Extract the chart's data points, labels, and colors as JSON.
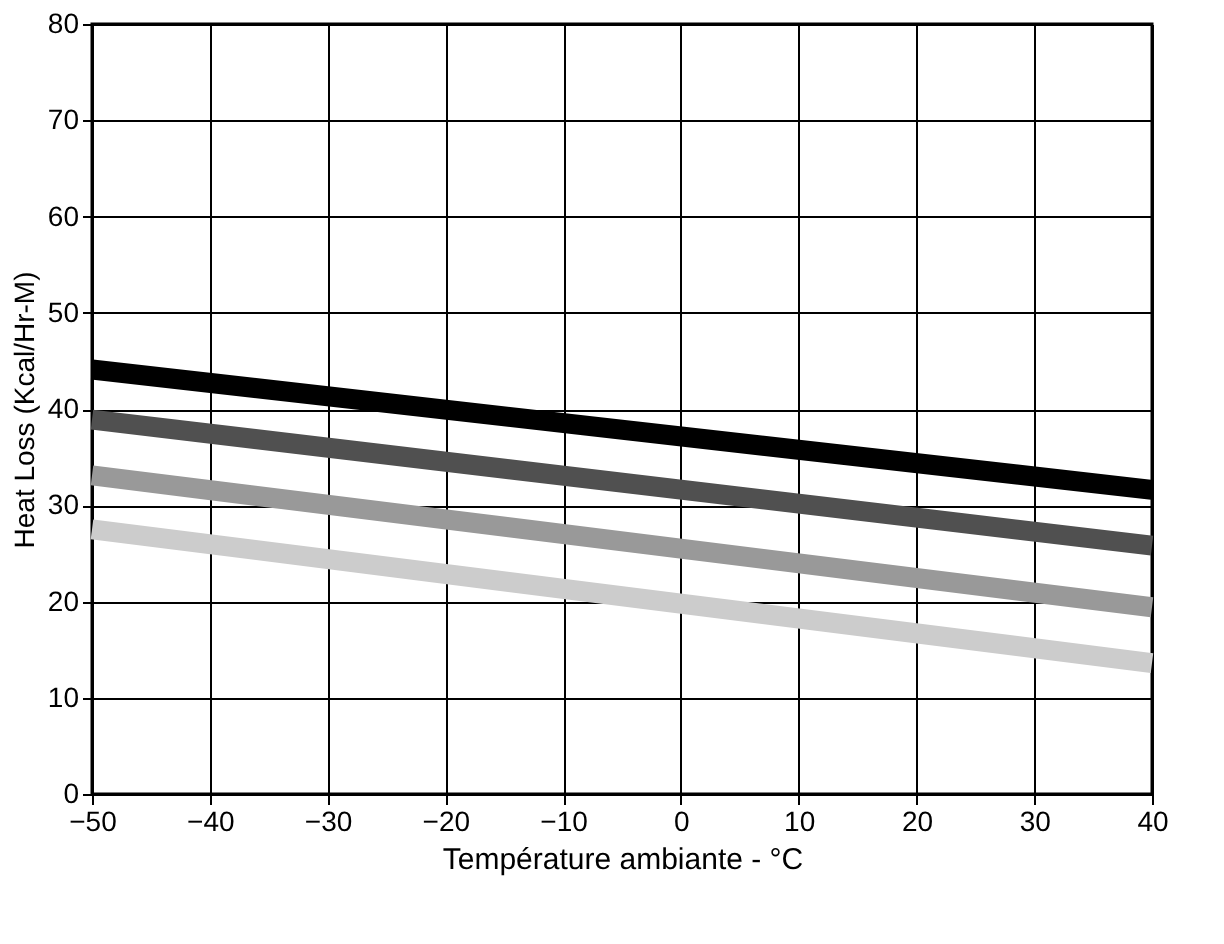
{
  "chart_data": {
    "type": "line",
    "xlabel": "Température ambiante - °C",
    "ylabel": "Heat Loss (Kcal/Hr-M)",
    "x": [
      -50,
      40
    ],
    "series": [
      {
        "color": "#000000",
        "values": [
          44.1,
          31.6
        ]
      },
      {
        "color": "#505050",
        "values": [
          38.9,
          25.8
        ]
      },
      {
        "color": "#999999",
        "values": [
          33.1,
          19.4
        ]
      },
      {
        "color": "#cccccc",
        "values": [
          27.5,
          13.6
        ]
      }
    ],
    "xlim": [
      -50,
      40
    ],
    "xticks": [
      -50,
      -40,
      -30,
      -20,
      -10,
      0,
      10,
      20,
      30,
      40
    ],
    "ylim": [
      0,
      80
    ],
    "yticks": [
      0,
      10,
      20,
      30,
      40,
      50,
      60,
      70,
      80
    ],
    "grid": true,
    "legend": false,
    "marker": "none",
    "line_style": "solid"
  }
}
